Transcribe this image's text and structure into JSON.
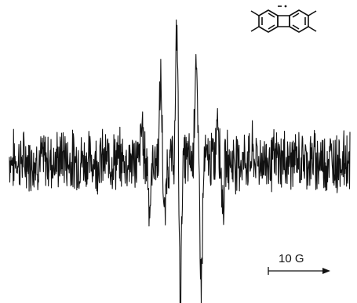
{
  "chart_data": {
    "type": "line",
    "title": "",
    "xlabel": "",
    "ylabel": "",
    "grid": false,
    "legend": "none",
    "scale_bar": {
      "label": "10 G",
      "length_gauss": 10
    },
    "x_range_gauss": [
      0,
      63
    ],
    "y_range": [
      -1.0,
      1.0
    ],
    "series": [
      {
        "name": "",
        "description_points": [
          {
            "x": 0.0,
            "y": 0.02
          },
          {
            "x": 10.0,
            "y": 0.05
          },
          {
            "x": 20.0,
            "y": 0.0
          },
          {
            "x": 24.5,
            "y": 0.25
          },
          {
            "x": 26.0,
            "y": -0.35
          },
          {
            "x": 28.0,
            "y": 0.55
          },
          {
            "x": 28.7,
            "y": -0.45
          },
          {
            "x": 31.0,
            "y": 0.95
          },
          {
            "x": 31.6,
            "y": -0.98
          },
          {
            "x": 34.5,
            "y": 0.75
          },
          {
            "x": 35.5,
            "y": -0.85
          },
          {
            "x": 38.5,
            "y": 0.38
          },
          {
            "x": 39.5,
            "y": -0.3
          },
          {
            "x": 45.0,
            "y": 0.05
          },
          {
            "x": 63.0,
            "y": 0.0
          }
        ],
        "color": "#111111"
      }
    ],
    "inset_structure": {
      "kind": "biphenylene-dimethyl radical anion",
      "radical_marker": "dot-dash"
    }
  }
}
